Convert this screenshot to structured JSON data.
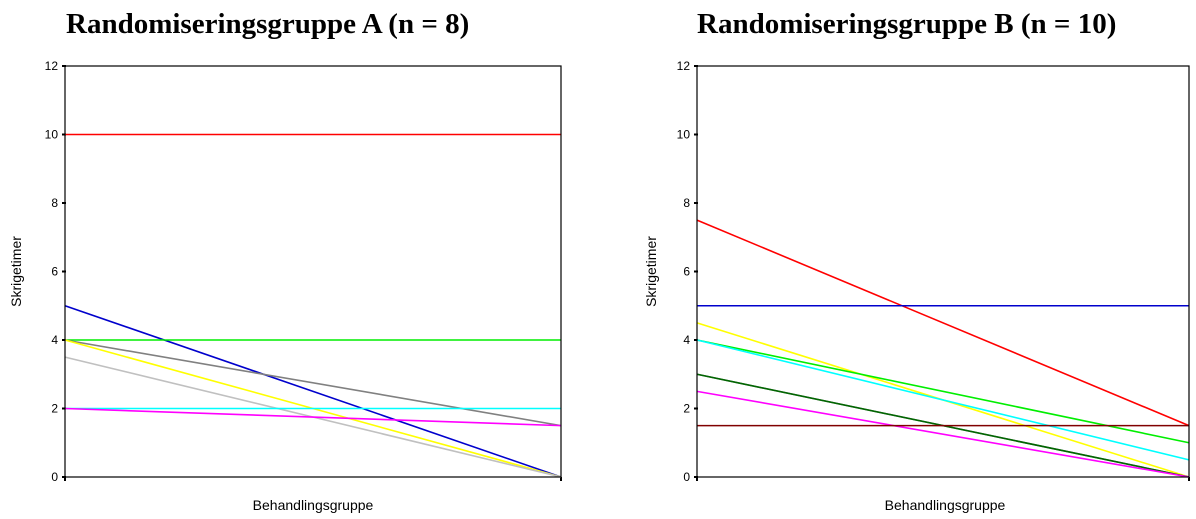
{
  "chart_data": [
    {
      "type": "line",
      "title": "Randomiseringsgruppe A (n = 8)",
      "xlabel": "Behandlingsgruppe",
      "ylabel": "Skrigetimer",
      "ylim": [
        0,
        12
      ],
      "yticks": [
        "0",
        "2",
        "4",
        "6",
        "8",
        "10",
        "12"
      ],
      "grid": false,
      "series": [
        {
          "color": "#ff0000",
          "values": [
            10,
            10
          ]
        },
        {
          "color": "#0000cc",
          "values": [
            5,
            0
          ]
        },
        {
          "color": "#00ee00",
          "values": [
            4,
            4
          ]
        },
        {
          "color": "#808080",
          "values": [
            4,
            1.5
          ]
        },
        {
          "color": "#ffff00",
          "values": [
            4,
            0
          ]
        },
        {
          "color": "#c0c0c0",
          "values": [
            3.5,
            0
          ]
        },
        {
          "color": "#00ffff",
          "values": [
            2,
            2
          ]
        },
        {
          "color": "#ff00ff",
          "values": [
            2,
            1.5
          ]
        }
      ]
    },
    {
      "type": "line",
      "title": "Randomiseringsgruppe B (n = 10)",
      "xlabel": "Behandlingsgruppe",
      "ylabel": "Skrigetimer",
      "ylim": [
        0,
        12
      ],
      "yticks": [
        "0",
        "2",
        "4",
        "6",
        "8",
        "10",
        "12"
      ],
      "grid": false,
      "series": [
        {
          "color": "#ff0000",
          "values": [
            7.5,
            1.5
          ]
        },
        {
          "color": "#9999ff",
          "values": [
            5,
            5
          ]
        },
        {
          "color": "#0000cc",
          "values": [
            5,
            5
          ]
        },
        {
          "color": "#ffff00",
          "values": [
            4.5,
            0
          ]
        },
        {
          "color": "#00ee00",
          "values": [
            4,
            1
          ]
        },
        {
          "color": "#00ffff",
          "values": [
            4,
            0.5
          ]
        },
        {
          "color": "#808080",
          "values": [
            3,
            0
          ]
        },
        {
          "color": "#006600",
          "values": [
            3,
            0
          ]
        },
        {
          "color": "#ff00ff",
          "values": [
            2.5,
            0
          ]
        },
        {
          "color": "#800000",
          "values": [
            1.5,
            1.5
          ]
        }
      ]
    }
  ]
}
